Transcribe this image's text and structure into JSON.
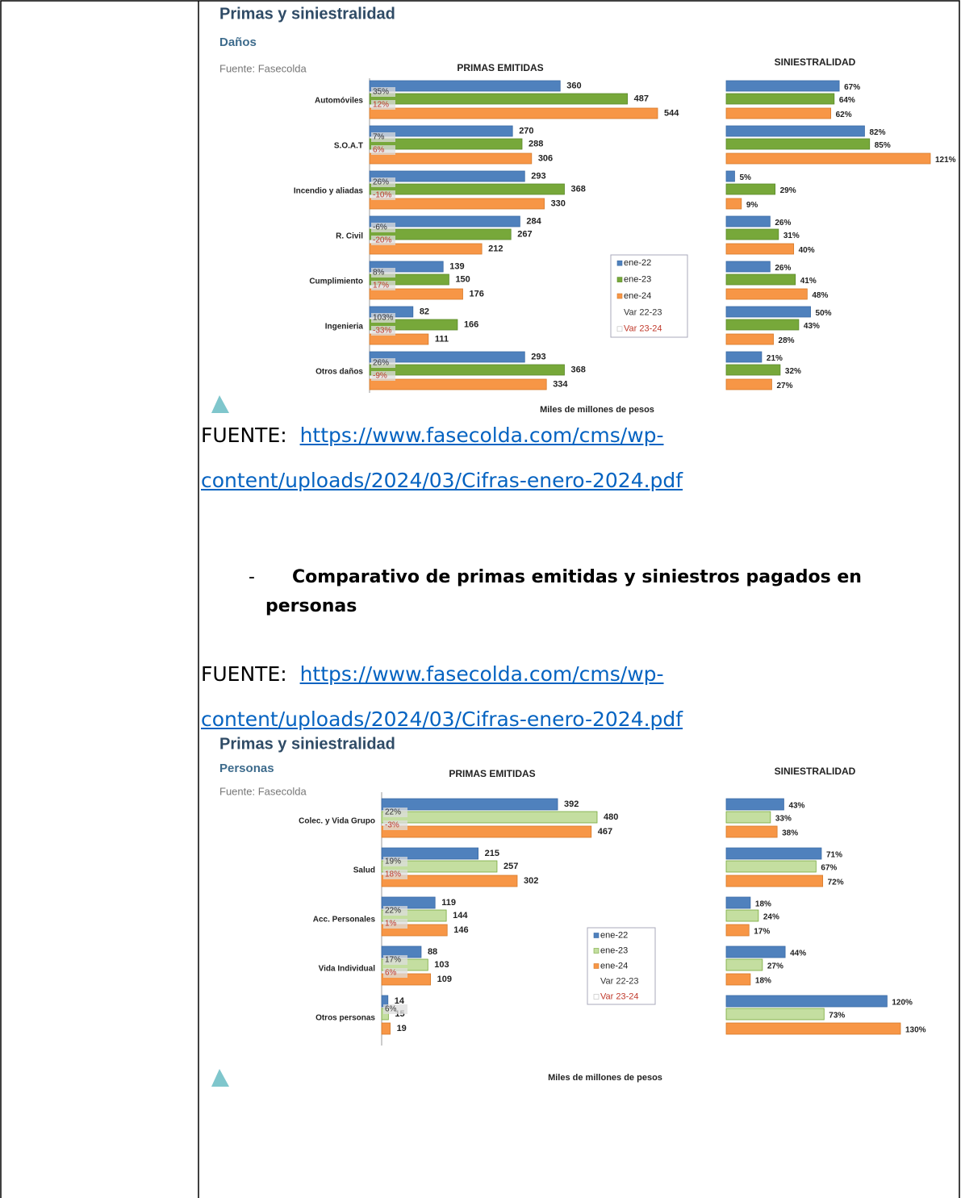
{
  "chart_data": [
    {
      "type": "bar",
      "orientation": "horizontal",
      "title": "Primas y siniestralidad",
      "subtitle": "Daños",
      "source": "Fuente: Fasecolda",
      "panel_titles": [
        "PRIMAS EMITIDAS",
        "SINIESTRALIDAD"
      ],
      "xlabel": "Miles de millones de pesos",
      "categories": [
        "Automóviles",
        "S.O.A.T",
        "Incendio y aliadas",
        "R. Civil",
        "Cumplimiento",
        "Ingenieria",
        "Otros daños"
      ],
      "series": [
        {
          "name": "ene-22",
          "color": "#4f81bd",
          "values": [
            360,
            270,
            293,
            284,
            139,
            82,
            293
          ],
          "loss_ratio": [
            67,
            82,
            5,
            26,
            26,
            50,
            21
          ],
          "loss_ratio_labels": [
            "67%",
            "82%",
            "5%",
            "26%",
            "26%",
            "50%",
            "21%"
          ]
        },
        {
          "name": "ene-23",
          "color": "#77a83a",
          "values": [
            487,
            288,
            368,
            267,
            150,
            166,
            368
          ],
          "loss_ratio": [
            64,
            85,
            29,
            31,
            41,
            43,
            32
          ],
          "loss_ratio_labels": [
            "64%",
            "85%",
            "29%",
            "31%",
            "41%",
            "43%",
            "32%"
          ]
        },
        {
          "name": "ene-24",
          "color": "#f79646",
          "values": [
            544,
            306,
            330,
            212,
            176,
            111,
            334
          ],
          "loss_ratio": [
            62,
            121,
            9,
            40,
            48,
            28,
            27
          ],
          "loss_ratio_labels": [
            "62%",
            "121%",
            "9%",
            "40%",
            "48%",
            "28%",
            "27%"
          ]
        }
      ],
      "change_series": [
        {
          "name": "Var 22-23",
          "color": "#333333",
          "values": [
            35,
            7,
            26,
            -6,
            8,
            103,
            26
          ],
          "value_labels": [
            "35%",
            "7%",
            "26%",
            "-6%",
            "8%",
            "103%",
            "26%"
          ]
        },
        {
          "name": "Var 23-24",
          "color": "#c0392b",
          "values": [
            12,
            6,
            -10,
            -20,
            17,
            -33,
            -9
          ],
          "value_labels": [
            "12%",
            "6%",
            "-10%",
            "-20%",
            "17%",
            "-33%",
            "-9%"
          ]
        }
      ]
    },
    {
      "type": "bar",
      "orientation": "horizontal",
      "title": "Primas y siniestralidad",
      "subtitle": "Personas",
      "source": "Fuente: Fasecolda",
      "panel_titles": [
        "PRIMAS EMITIDAS",
        "SINIESTRALIDAD"
      ],
      "xlabel": "Miles de millones de pesos",
      "categories": [
        "Colec. y Vida Grupo",
        "Salud",
        "Acc. Personales",
        "Vida Individual",
        "Otros personas"
      ],
      "series": [
        {
          "name": "ene-22",
          "color": "#4f81bd",
          "values": [
            392,
            215,
            119,
            88,
            14
          ],
          "loss_ratio": [
            43,
            71,
            18,
            44,
            120
          ],
          "loss_ratio_labels": [
            "43%",
            "71%",
            "18%",
            "44%",
            "120%"
          ]
        },
        {
          "name": "ene-23",
          "color": "#c4dea0",
          "values": [
            480,
            257,
            144,
            103,
            15
          ],
          "loss_ratio": [
            33,
            67,
            24,
            27,
            73
          ],
          "loss_ratio_labels": [
            "33%",
            "67%",
            "24%",
            "27%",
            "73%"
          ]
        },
        {
          "name": "ene-24",
          "color": "#f79646",
          "values": [
            467,
            302,
            146,
            109,
            19
          ],
          "loss_ratio": [
            38,
            72,
            17,
            18,
            130
          ],
          "loss_ratio_labels": [
            "38%",
            "72%",
            "17%",
            "18%",
            "130%"
          ]
        }
      ],
      "change_series": [
        {
          "name": "Var 22-23",
          "color": "#333333",
          "values": [
            22,
            19,
            22,
            17,
            6
          ],
          "value_labels": [
            "22%",
            "19%",
            "22%",
            "17%",
            "6%"
          ]
        },
        {
          "name": "Var 23-24",
          "color": "#c0392b",
          "values": [
            -3,
            18,
            1,
            6,
            null
          ],
          "value_labels": [
            "-3%",
            "18%",
            "1%",
            "6%",
            null
          ]
        }
      ]
    }
  ],
  "document": {
    "sources": [
      {
        "label": "FUENTE:",
        "url": "https://www.fasecolda.com/cms/wp-content/uploads/2024/03/Cifras-enero-2024.pdf"
      },
      {
        "label": "FUENTE:",
        "url": "https://www.fasecolda.com/cms/wp-content/uploads/2024/03/Cifras-enero-2024.pdf"
      }
    ],
    "list_marker": "-",
    "heading": "Comparativo de primas emitidas y siniestros pagados en personas"
  }
}
